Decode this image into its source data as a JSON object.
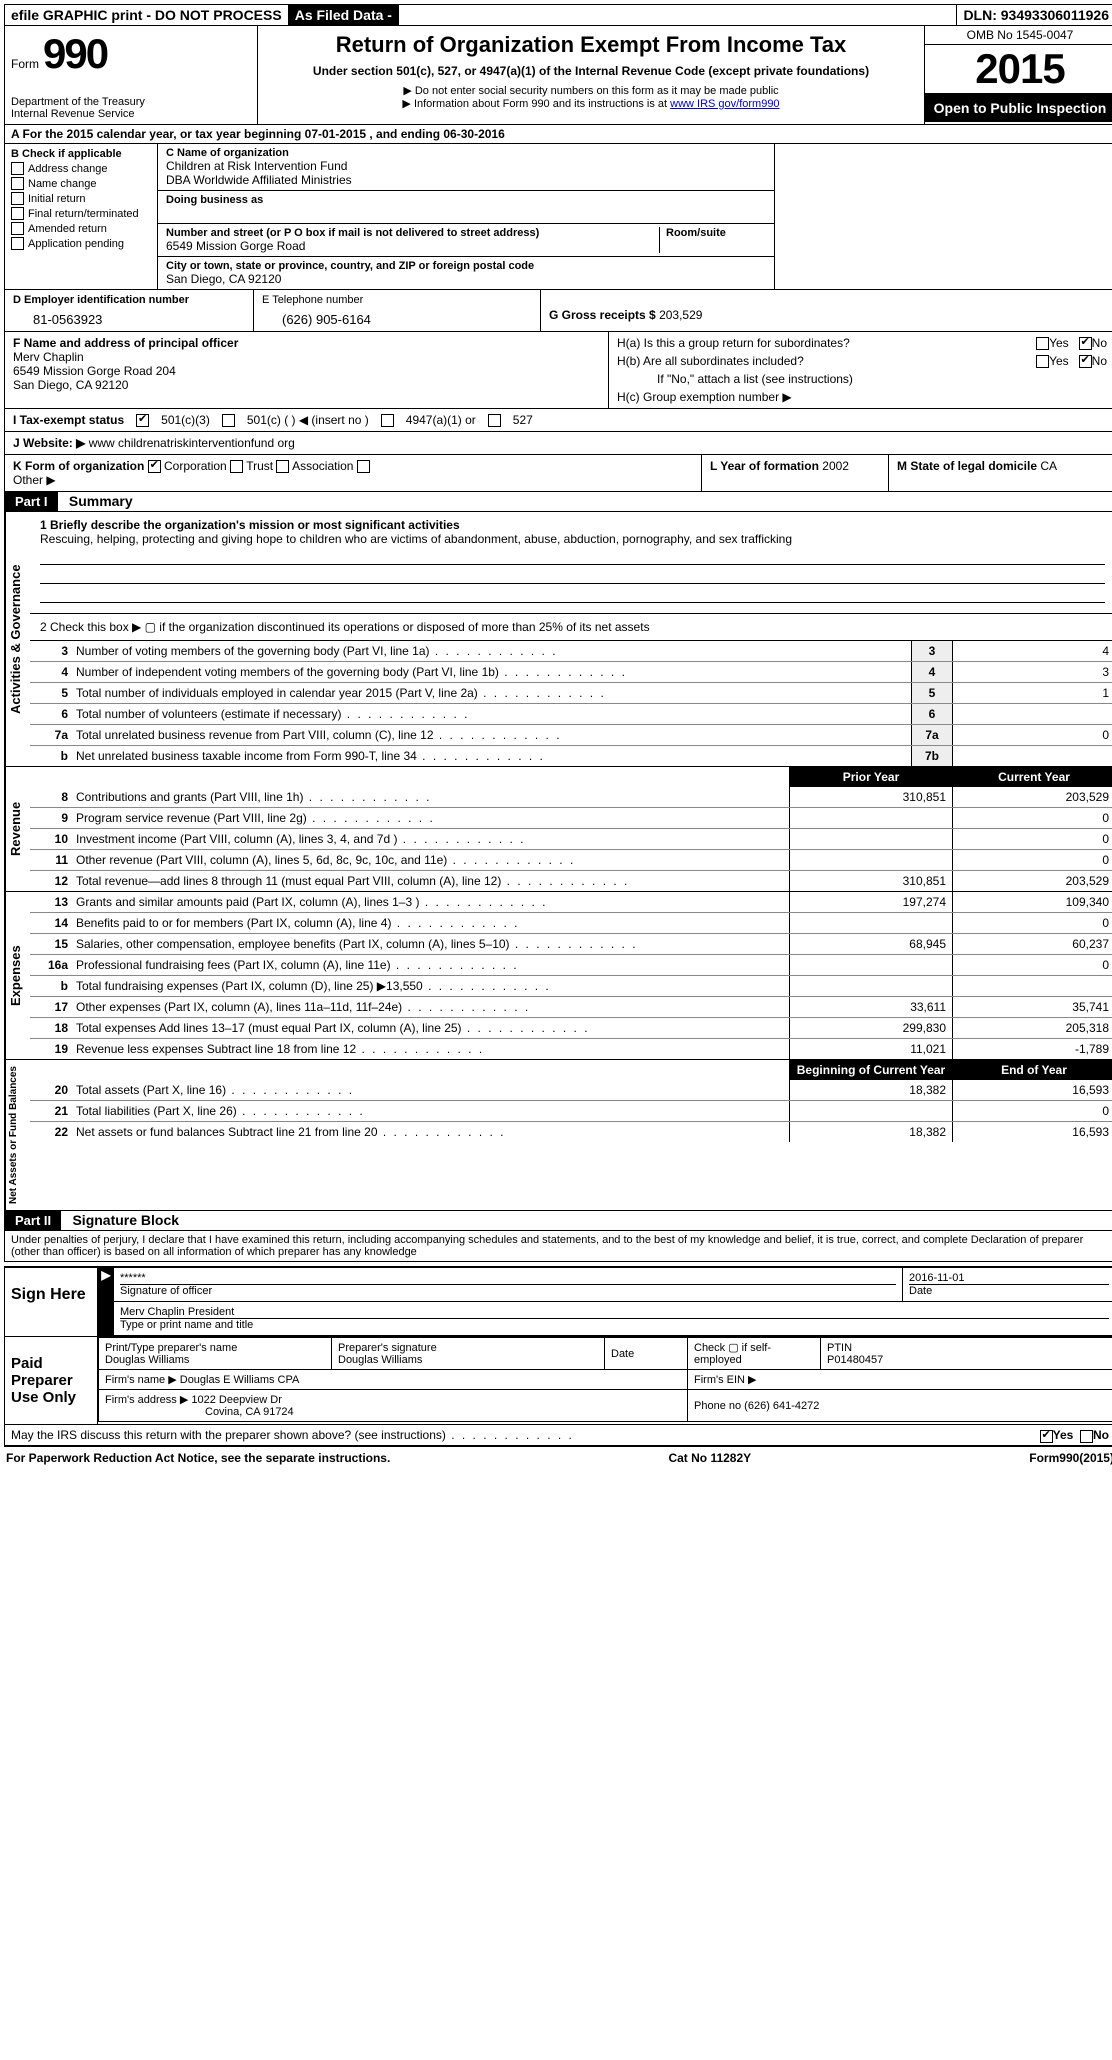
{
  "topbar": {
    "efile": "efile GRAPHIC print - DO NOT PROCESS",
    "asfiled": "As Filed Data -",
    "dln_label": "DLN:",
    "dln": "93493306011926"
  },
  "header": {
    "form_word": "Form",
    "form_num": "990",
    "dept1": "Department of the Treasury",
    "dept2": "Internal Revenue Service",
    "title": "Return of Organization Exempt From Income Tax",
    "subtitle": "Under section 501(c), 527, or 4947(a)(1) of the Internal Revenue Code (except private foundations)",
    "note1": "▶ Do not enter social security numbers on this form as it may be made public",
    "note2_pre": "▶ Information about Form 990 and its instructions is at ",
    "note2_link": "www IRS gov/form990",
    "omb": "OMB No 1545-0047",
    "year": "2015",
    "inspection": "Open to Public Inspection"
  },
  "row_a": "A  For the 2015 calendar year, or tax year beginning 07-01-2015   , and ending 06-30-2016",
  "box_b": {
    "title": "B  Check if applicable",
    "items": [
      "Address change",
      "Name change",
      "Initial return",
      "Final return/terminated",
      "Amended return",
      "Application pending"
    ]
  },
  "box_c": {
    "name_lbl": "C Name of organization",
    "name1": "Children at Risk Intervention Fund",
    "name2": "DBA Worldwide Affiliated Ministries",
    "dba_lbl": "Doing business as",
    "addr_lbl": "Number and street (or P O  box if mail is not delivered to street address)",
    "addr": "6549 Mission Gorge Road",
    "room_lbl": "Room/suite",
    "city_lbl": "City or town, state or province, country, and ZIP or foreign postal code",
    "city": "San Diego, CA  92120"
  },
  "row_d": {
    "d_lbl": "D Employer identification number",
    "ein": "81-0563923",
    "e_lbl": "E Telephone number",
    "tel": "(626) 905-6164",
    "g_lbl": "G Gross receipts $",
    "gross": "203,529"
  },
  "row_f": {
    "lbl": "F   Name and address of principal officer",
    "name": "Merv Chaplin",
    "addr1": "6549 Mission Gorge Road 204",
    "addr2": "San Diego, CA  92120"
  },
  "row_h": {
    "ha": "H(a)  Is this a group return for subordinates?",
    "hb": "H(b)  Are all subordinates included?",
    "hb_note": "If \"No,\" attach a list  (see instructions)",
    "hc": "H(c)   Group exemption number ▶",
    "yes": "Yes",
    "no": "No"
  },
  "row_i": {
    "lbl": "I   Tax-exempt status",
    "o1": "501(c)(3)",
    "o2": "501(c) (  ) ◀ (insert no )",
    "o3": "4947(a)(1) or",
    "o4": "527"
  },
  "row_j": {
    "lbl": "J  Website: ▶",
    "val": "www childrenatriskinterventionfund org"
  },
  "row_k": {
    "k_lbl": "K Form of organization",
    "k1": "Corporation",
    "k2": "Trust",
    "k3": "Association",
    "other": "Other ▶",
    "l_lbl": "L Year of formation",
    "l_val": "2002",
    "m_lbl": "M State of legal domicile",
    "m_val": "CA"
  },
  "part1": {
    "hdr": "Part I",
    "title": "Summary",
    "q1_lbl": "1 Briefly describe the organization's mission or most significant activities",
    "q1_text": "Rescuing, helping, protecting and giving hope to children who are victims of abandonment, abuse, abduction, pornography, and sex trafficking",
    "q2": "2  Check this box ▶ ▢ if the organization discontinued its operations or disposed of more than 25% of its net assets",
    "ag_lines": [
      {
        "n": "3",
        "d": "Number of voting members of the governing body (Part VI, line 1a)",
        "box": "3",
        "v": "4"
      },
      {
        "n": "4",
        "d": "Number of independent voting members of the governing body (Part VI, line 1b)",
        "box": "4",
        "v": "3"
      },
      {
        "n": "5",
        "d": "Total number of individuals employed in calendar year 2015 (Part V, line 2a)",
        "box": "5",
        "v": "1"
      },
      {
        "n": "6",
        "d": "Total number of volunteers (estimate if necessary)",
        "box": "6",
        "v": ""
      },
      {
        "n": "7a",
        "d": "Total unrelated business revenue from Part VIII, column (C), line 12",
        "box": "7a",
        "v": "0"
      },
      {
        "n": "b",
        "d": "Net unrelated business taxable income from Form 990-T, line 34",
        "box": "7b",
        "v": ""
      }
    ],
    "col_prior": "Prior Year",
    "col_curr": "Current Year",
    "rev_lines": [
      {
        "n": "8",
        "d": "Contributions and grants (Part VIII, line 1h)",
        "p": "310,851",
        "c": "203,529"
      },
      {
        "n": "9",
        "d": "Program service revenue (Part VIII, line 2g)",
        "p": "",
        "c": "0"
      },
      {
        "n": "10",
        "d": "Investment income (Part VIII, column (A), lines 3, 4, and 7d )",
        "p": "",
        "c": "0"
      },
      {
        "n": "11",
        "d": "Other revenue (Part VIII, column (A), lines 5, 6d, 8c, 9c, 10c, and 11e)",
        "p": "",
        "c": "0"
      },
      {
        "n": "12",
        "d": "Total revenue—add lines 8 through 11 (must equal Part VIII, column (A), line 12)",
        "p": "310,851",
        "c": "203,529"
      }
    ],
    "exp_lines": [
      {
        "n": "13",
        "d": "Grants and similar amounts paid (Part IX, column (A), lines 1–3 )",
        "p": "197,274",
        "c": "109,340"
      },
      {
        "n": "14",
        "d": "Benefits paid to or for members (Part IX, column (A), line 4)",
        "p": "",
        "c": "0"
      },
      {
        "n": "15",
        "d": "Salaries, other compensation, employee benefits (Part IX, column (A), lines 5–10)",
        "p": "68,945",
        "c": "60,237"
      },
      {
        "n": "16a",
        "d": "Professional fundraising fees (Part IX, column (A), line 11e)",
        "p": "",
        "c": "0"
      },
      {
        "n": "b",
        "d": "Total fundraising expenses (Part IX, column (D), line 25) ▶13,550",
        "p": "",
        "c": ""
      },
      {
        "n": "17",
        "d": "Other expenses (Part IX, column (A), lines 11a–11d, 11f–24e)",
        "p": "33,611",
        "c": "35,741"
      },
      {
        "n": "18",
        "d": "Total expenses  Add lines 13–17 (must equal Part IX, column (A), line 25)",
        "p": "299,830",
        "c": "205,318"
      },
      {
        "n": "19",
        "d": "Revenue less expenses  Subtract line 18 from line 12",
        "p": "11,021",
        "c": "-1,789"
      }
    ],
    "col_begin": "Beginning of Current Year",
    "col_end": "End of Year",
    "net_lines": [
      {
        "n": "20",
        "d": "Total assets (Part X, line 16)",
        "p": "18,382",
        "c": "16,593"
      },
      {
        "n": "21",
        "d": "Total liabilities (Part X, line 26)",
        "p": "",
        "c": "0"
      },
      {
        "n": "22",
        "d": "Net assets or fund balances  Subtract line 21 from line 20",
        "p": "18,382",
        "c": "16,593"
      }
    ],
    "side_ag": "Activities & Governance",
    "side_rev": "Revenue",
    "side_exp": "Expenses",
    "side_net": "Net Assets or Fund Balances"
  },
  "part2": {
    "hdr": "Part II",
    "title": "Signature Block",
    "decl": "Under penalties of perjury, I declare that I have examined this return, including accompanying schedules and statements, and to the best of my knowledge and belief, it is true, correct, and complete  Declaration of preparer (other than officer) is based on all information of which preparer has any knowledge",
    "sign_here": "Sign Here",
    "stars": "******",
    "sig_officer": "Signature of officer",
    "date_val": "2016-11-01",
    "date_lbl": "Date",
    "officer_name": "Merv Chaplin President",
    "officer_type": "Type or print name and title",
    "paid": "Paid Preparer Use Only",
    "prep_name_lbl": "Print/Type preparer's name",
    "prep_name": "Douglas Williams",
    "prep_sig_lbl": "Preparer's signature",
    "prep_sig": "Douglas Williams",
    "prep_date_lbl": "Date",
    "self_emp": "Check ▢ if self-employed",
    "ptin_lbl": "PTIN",
    "ptin": "P01480457",
    "firm_name_lbl": "Firm's name    ▶",
    "firm_name": "Douglas E Williams CPA",
    "firm_ein_lbl": "Firm's EIN ▶",
    "firm_addr_lbl": "Firm's address ▶",
    "firm_addr1": "1022 Deepview Dr",
    "firm_addr2": "Covina, CA  91724",
    "firm_phone_lbl": "Phone no",
    "firm_phone": "(626) 641-4272",
    "discuss": "May the IRS discuss this return with the preparer shown above? (see instructions)",
    "yes": "Yes",
    "no": "No"
  },
  "footer": {
    "left": "For Paperwork Reduction Act Notice, see the separate instructions.",
    "mid": "Cat No 11282Y",
    "right": "Form990(2015)"
  }
}
